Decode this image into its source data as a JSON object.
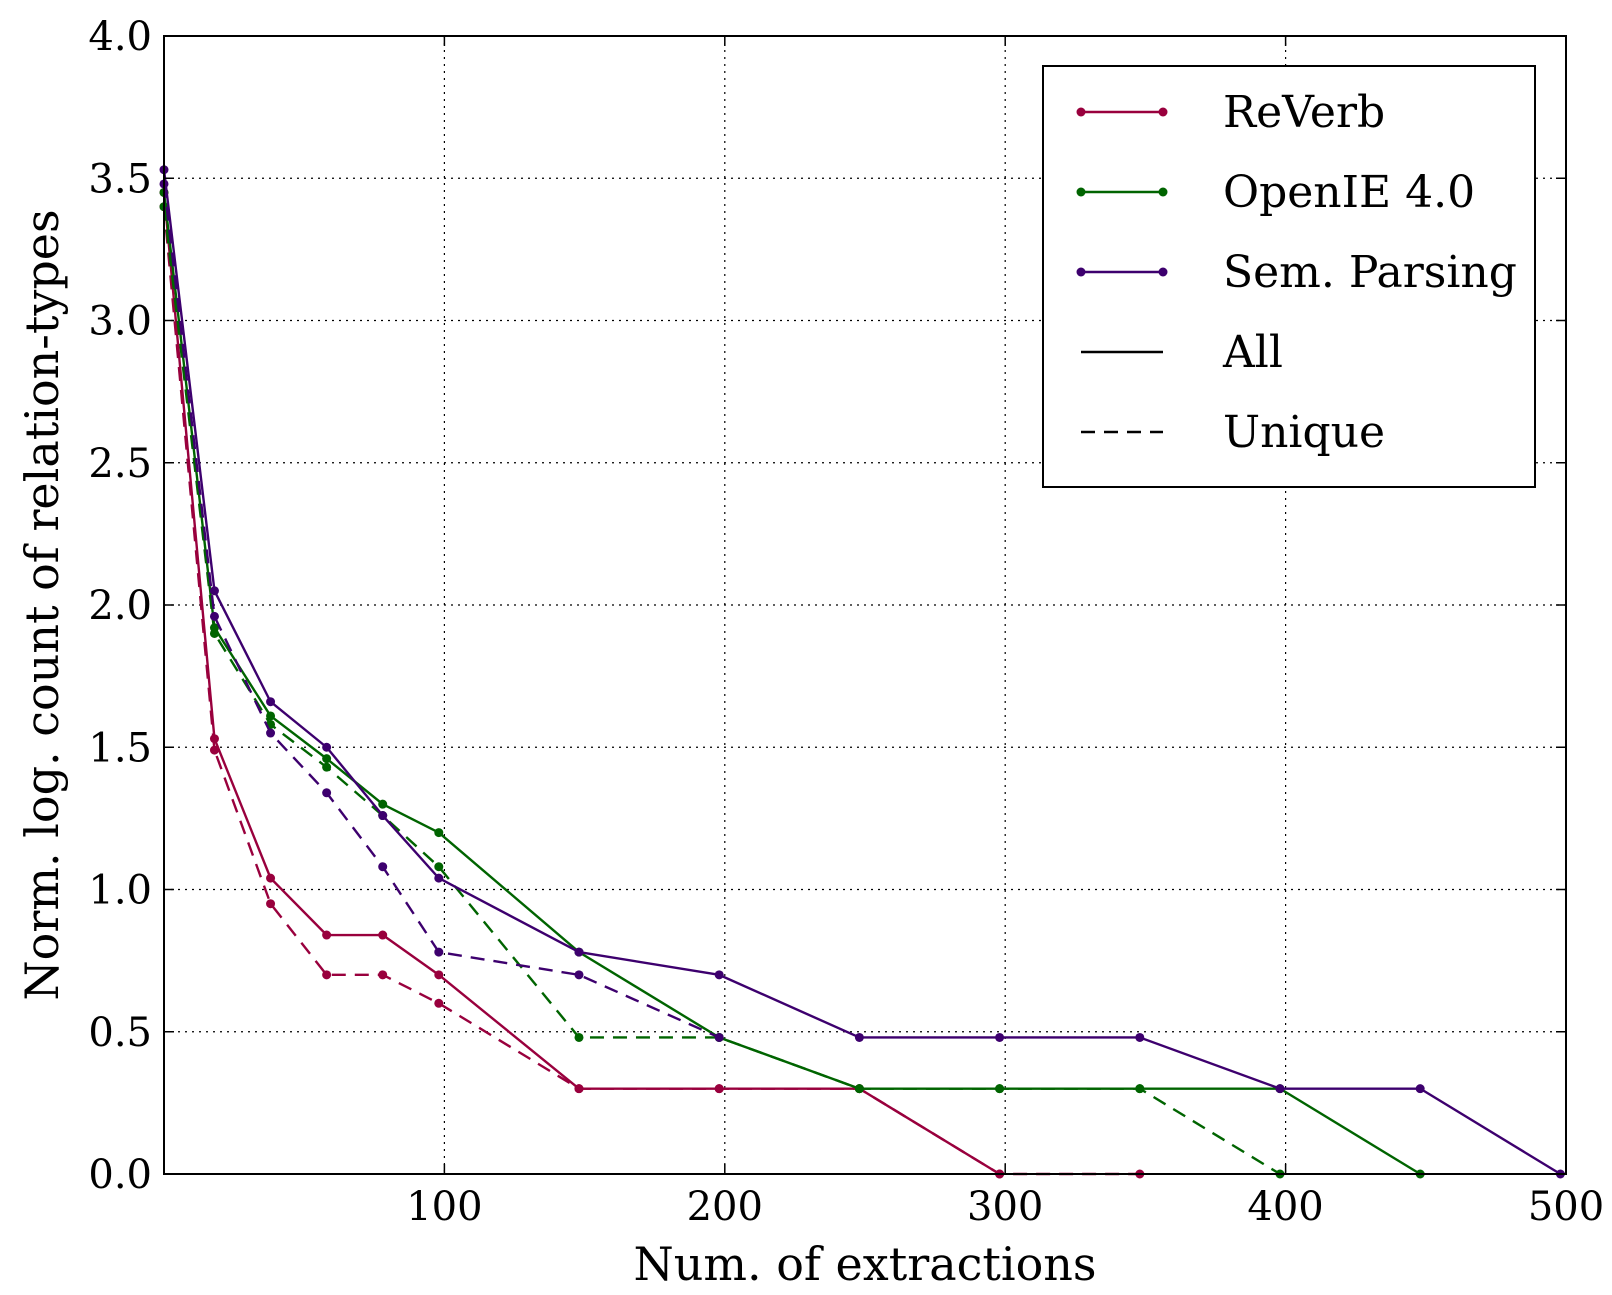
{
  "chart_data": {
    "type": "line",
    "xlabel": "Num. of extractions",
    "ylabel": "Norm. log. count of relation-types",
    "xlim": [
      0,
      500
    ],
    "ylim": [
      0,
      4.0
    ],
    "xticks": [
      100,
      200,
      300,
      400,
      500
    ],
    "xtick_labels": [
      "100",
      "200",
      "300",
      "400",
      "500"
    ],
    "yticks": [
      0,
      0.5,
      1.0,
      1.5,
      2.0,
      2.5,
      3.0,
      3.5,
      4.0
    ],
    "ytick_labels": [
      "0.0",
      "0.5",
      "1.0",
      "1.5",
      "2.0",
      "2.5",
      "3.0",
      "3.5",
      "4.0"
    ],
    "grid": true,
    "legend_position": "top-right",
    "legend": [
      {
        "label": "ReVerb",
        "kind": "color",
        "color": "#99003d"
      },
      {
        "label": "OpenIE 4.0",
        "kind": "color",
        "color": "#006400"
      },
      {
        "label": "Sem. Parsing",
        "kind": "color",
        "color": "#3d006e"
      },
      {
        "label": "All",
        "kind": "style",
        "style": "solid"
      },
      {
        "label": "Unique",
        "kind": "style",
        "style": "dashed"
      }
    ],
    "series": [
      {
        "name": "ReVerb",
        "variant": "All",
        "color": "#99003d",
        "style": "solid",
        "x": [
          0,
          18,
          38,
          58,
          78,
          98,
          148,
          198,
          248,
          298
        ],
        "y": [
          3.45,
          1.53,
          1.04,
          0.84,
          0.84,
          0.7,
          0.3,
          0.3,
          0.3,
          0.0
        ]
      },
      {
        "name": "ReVerb",
        "variant": "Unique",
        "color": "#99003d",
        "style": "dashed",
        "x": [
          0,
          18,
          38,
          58,
          78,
          98,
          148,
          198,
          248,
          298,
          348
        ],
        "y": [
          3.4,
          1.49,
          0.95,
          0.7,
          0.7,
          0.6,
          0.3,
          0.3,
          0.3,
          0.0,
          0.0
        ]
      },
      {
        "name": "OpenIE 4.0",
        "variant": "All",
        "color": "#006400",
        "style": "solid",
        "x": [
          0,
          18,
          38,
          58,
          78,
          98,
          148,
          198,
          248,
          298,
          348,
          398,
          448
        ],
        "y": [
          3.45,
          1.92,
          1.61,
          1.46,
          1.3,
          1.2,
          0.78,
          0.48,
          0.3,
          0.3,
          0.3,
          0.3,
          0.0
        ]
      },
      {
        "name": "OpenIE 4.0",
        "variant": "Unique",
        "color": "#006400",
        "style": "dashed",
        "x": [
          0,
          18,
          38,
          58,
          78,
          98,
          148,
          198,
          248,
          298,
          348,
          398
        ],
        "y": [
          3.4,
          1.9,
          1.58,
          1.43,
          1.26,
          1.08,
          0.48,
          0.48,
          0.3,
          0.3,
          0.3,
          0.0
        ]
      },
      {
        "name": "Sem. Parsing",
        "variant": "All",
        "color": "#3d006e",
        "style": "solid",
        "x": [
          0,
          18,
          38,
          58,
          78,
          98,
          148,
          198,
          248,
          298,
          348,
          398,
          448,
          498
        ],
        "y": [
          3.53,
          2.05,
          1.66,
          1.5,
          1.26,
          1.04,
          0.78,
          0.7,
          0.48,
          0.48,
          0.48,
          0.3,
          0.3,
          0.0
        ]
      },
      {
        "name": "Sem. Parsing",
        "variant": "Unique",
        "color": "#3d006e",
        "style": "dashed",
        "x": [
          0,
          18,
          38,
          58,
          78,
          98,
          148,
          198
        ],
        "y": [
          3.48,
          1.96,
          1.55,
          1.34,
          1.08,
          0.78,
          0.7,
          0.48
        ]
      }
    ]
  }
}
